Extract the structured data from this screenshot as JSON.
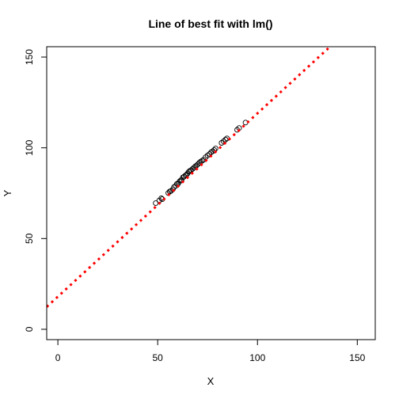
{
  "chart_data": {
    "type": "scatter",
    "title": "Line of best fit with lm()",
    "xlabel": "X",
    "ylabel": "Y",
    "xlim": [
      -5.6,
      159
    ],
    "ylim": [
      -5.7,
      155.7
    ],
    "xticks": [
      0,
      50,
      100,
      150
    ],
    "yticks": [
      0,
      50,
      100,
      150
    ],
    "grid": false,
    "fit_line": {
      "intercept": 18.0,
      "slope": 1.01,
      "color": "#ff0000",
      "style": "dashed"
    },
    "points": {
      "x": [
        49.0,
        50.8,
        51.8,
        52.3,
        55.3,
        56.0,
        56.6,
        57.6,
        58.2,
        59.0,
        59.6,
        60.3,
        60.9,
        61.5,
        62.0,
        62.6,
        63.2,
        63.9,
        64.5,
        65.0,
        65.6,
        66.1,
        66.8,
        67.5,
        68.2,
        68.9,
        69.5,
        70.2,
        70.9,
        71.6,
        72.3,
        73.0,
        74.0,
        75.0,
        76.0,
        76.8,
        77.6,
        78.3,
        79.0,
        82.0,
        83.0,
        84.0,
        84.7,
        89.8,
        90.8,
        94.0
      ],
      "y": [
        69.5,
        71.0,
        72.2,
        71.7,
        75.1,
        75.9,
        76.2,
        77.1,
        78.4,
        79.0,
        80.1,
        80.3,
        81.4,
        82.0,
        82.4,
        83.7,
        84.1,
        84.8,
        85.2,
        85.9,
        86.8,
        87.3,
        87.7,
        88.4,
        89.1,
        89.8,
        90.3,
        91.0,
        91.8,
        92.4,
        92.9,
        93.4,
        94.8,
        95.8,
        96.6,
        97.6,
        98.1,
        98.8,
        99.6,
        102.7,
        103.6,
        104.5,
        105.2,
        109.9,
        110.9,
        113.9
      ],
      "color": "#000000",
      "fill": "#ff3333"
    }
  }
}
